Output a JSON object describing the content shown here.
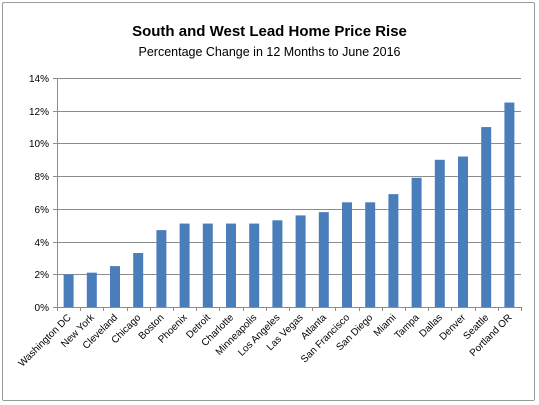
{
  "chart_data": {
    "type": "bar",
    "title": "South and West Lead Home Price Rise",
    "subtitle": "Percentage Change in 12 Months to June 2016",
    "xlabel": "",
    "ylabel": "",
    "categories": [
      "Washington DC",
      "New York",
      "Cleveland",
      "Chicago",
      "Boston",
      "Phoenix",
      "Detroit",
      "Charlotte",
      "Minneapolis",
      "Los Angeles",
      "Las Vegas",
      "Atlanta",
      "San Francisco",
      "San Diego",
      "Miami",
      "Tampa",
      "Dallas",
      "Denver",
      "Seattle",
      "Portland OR"
    ],
    "values": [
      2.0,
      2.1,
      2.5,
      3.3,
      4.7,
      5.1,
      5.1,
      5.1,
      5.1,
      5.3,
      5.6,
      5.8,
      6.4,
      6.4,
      6.9,
      7.9,
      9.0,
      9.2,
      11.0,
      12.5
    ],
    "ylim": [
      0,
      14
    ],
    "yticks": [
      0,
      2,
      4,
      6,
      8,
      10,
      12,
      14
    ],
    "ytick_labels": [
      "0%",
      "2%",
      "4%",
      "6%",
      "8%",
      "10%",
      "12%",
      "14%"
    ],
    "grid": true,
    "legend": "none",
    "bar_color": "#4a7ebb"
  }
}
